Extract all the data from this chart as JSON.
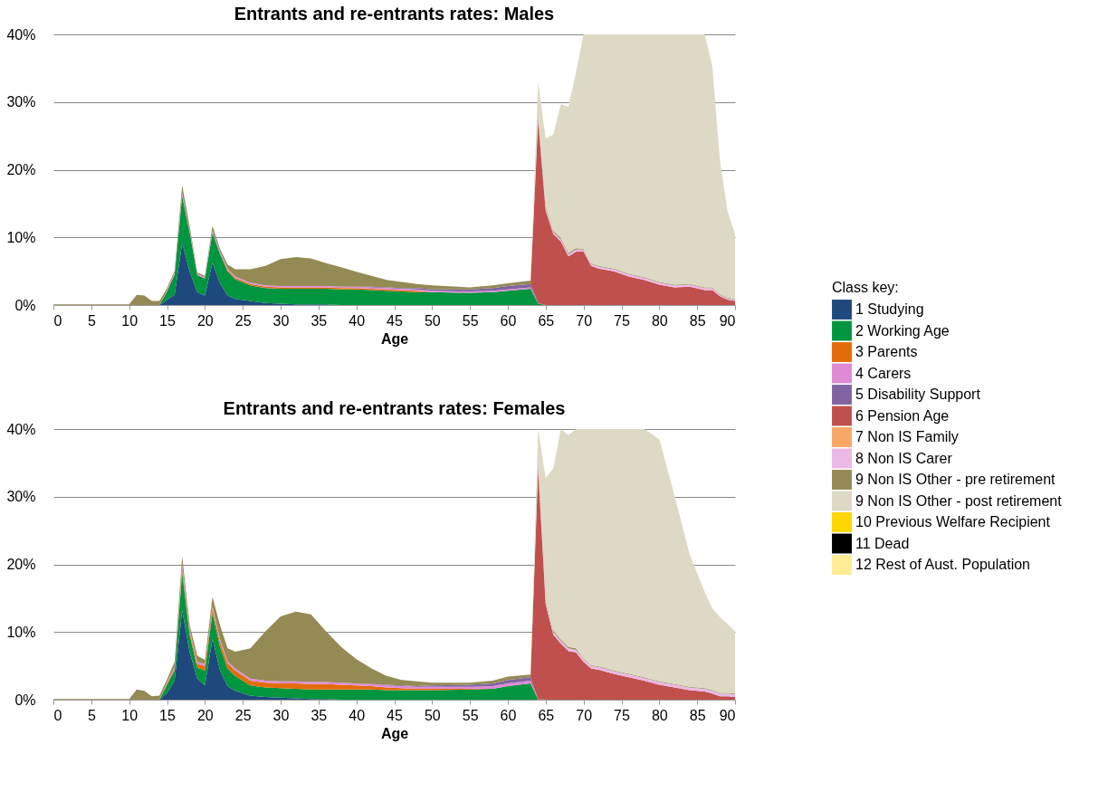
{
  "chart_data": [
    {
      "type": "area",
      "stacked": true,
      "title": "Entrants and re-entrants rates: Males",
      "xlabel": "Age",
      "legend_title": "Class key:",
      "legend": "right",
      "grid": "y",
      "xlim": [
        0,
        90
      ],
      "xticks": [
        0,
        5,
        10,
        15,
        20,
        25,
        30,
        35,
        40,
        45,
        50,
        55,
        60,
        65,
        70,
        75,
        80,
        85,
        90
      ],
      "ylim": [
        0,
        40
      ],
      "yticks": [
        {
          "value": 0,
          "label": "0%"
        },
        {
          "value": 10,
          "label": "10%"
        },
        {
          "value": 20,
          "label": "20%"
        },
        {
          "value": 30,
          "label": "30%"
        },
        {
          "value": 40,
          "label": "40%"
        }
      ],
      "x": [
        0,
        10,
        11,
        12,
        13,
        14,
        15,
        16,
        17,
        18,
        19,
        20,
        21,
        22,
        23,
        24,
        26,
        28,
        30,
        32,
        34,
        36,
        38,
        40,
        42,
        44,
        46,
        48,
        50,
        55,
        58,
        60,
        63,
        64,
        65,
        66,
        67,
        68,
        69,
        70,
        71,
        72,
        74,
        76,
        78,
        80,
        82,
        84,
        86,
        87,
        88,
        89,
        90
      ],
      "series": [
        {
          "name": "1 Studying",
          "color": "#1f497d",
          "values": [
            null,
            null,
            null,
            null,
            null,
            0,
            0.8,
            1.5,
            9.2,
            4.9,
            1.9,
            1.4,
            6.3,
            3.2,
            1.4,
            0.9,
            0.6,
            0.3,
            0.2,
            0.1,
            0.1,
            0.1,
            0,
            null,
            null,
            null,
            null,
            null,
            null,
            null,
            null,
            null,
            null,
            null,
            null,
            null,
            null,
            null,
            null,
            null,
            null,
            null,
            null,
            null,
            null,
            null,
            null,
            null,
            null,
            null,
            null,
            null,
            null
          ]
        },
        {
          "name": "2 Working Age",
          "color": "#00953f",
          "values": [
            null,
            null,
            null,
            null,
            null,
            0,
            1.2,
            3,
            6.9,
            5.8,
            2.5,
            2.5,
            4.4,
            4.4,
            3.6,
            2.9,
            2.3,
            2.2,
            2.2,
            2.3,
            2.3,
            2.3,
            2.3,
            2.3,
            2.2,
            2.1,
            2.0,
            1.9,
            1.9,
            1.8,
            1.9,
            2.1,
            2.4,
            0.2,
            0,
            null,
            null,
            null,
            null,
            null,
            null,
            null,
            null,
            null,
            null,
            null,
            null,
            null,
            null,
            null,
            null,
            null,
            null
          ]
        },
        {
          "name": "3 Parents",
          "color": "#e36c0a",
          "values": [
            null,
            null,
            null,
            null,
            null,
            null,
            null,
            null,
            null,
            null,
            null,
            null,
            null,
            0,
            0.2,
            0.2,
            0.2,
            0.2,
            0.2,
            0.2,
            0.2,
            0.2,
            0.2,
            0.2,
            0.2,
            0.2,
            0.2,
            0.2,
            0,
            null,
            null,
            null,
            null,
            null,
            null,
            null,
            null,
            null,
            null,
            null,
            null,
            null,
            null,
            null,
            null,
            null,
            null,
            null,
            null,
            null,
            null,
            null,
            null
          ]
        },
        {
          "name": "4 Carers",
          "color": "#e08ad6",
          "values": [
            null,
            null,
            null,
            null,
            null,
            0,
            0.2,
            0.3,
            0.4,
            0.3,
            0.2,
            0.2,
            0.3,
            0.3,
            0.2,
            0.2,
            0.2,
            0.2,
            0.2,
            0.2,
            0.2,
            0.2,
            0.2,
            0.2,
            0.2,
            0.2,
            0.2,
            0.2,
            0.2,
            0.2,
            0.2,
            0.2,
            0.2,
            0,
            null,
            null,
            null,
            null,
            null,
            null,
            null,
            null,
            null,
            null,
            null,
            null,
            null,
            null,
            null,
            null,
            null,
            null,
            null
          ]
        },
        {
          "name": "5 Disability Support",
          "color": "#8064a2",
          "values": [
            null,
            null,
            null,
            null,
            null,
            null,
            null,
            null,
            null,
            null,
            null,
            null,
            null,
            null,
            null,
            null,
            null,
            null,
            null,
            null,
            null,
            null,
            null,
            0,
            0.1,
            0.1,
            0.1,
            0.2,
            0.2,
            0.3,
            0.4,
            0.5,
            0.5,
            0.1,
            0,
            null,
            null,
            null,
            null,
            null,
            null,
            null,
            null,
            null,
            null,
            null,
            null,
            null,
            null,
            null,
            null,
            null,
            null
          ]
        },
        {
          "name": "6 Pension Age",
          "color": "#c0504d",
          "values": [
            null,
            null,
            null,
            null,
            null,
            null,
            null,
            null,
            null,
            null,
            null,
            null,
            null,
            null,
            null,
            null,
            null,
            null,
            null,
            null,
            null,
            null,
            null,
            null,
            null,
            null,
            null,
            null,
            null,
            null,
            null,
            null,
            0,
            27,
            13.9,
            10.5,
            9.4,
            7.2,
            7.9,
            7.9,
            5.8,
            5.4,
            5.0,
            4.2,
            3.7,
            3.0,
            2.6,
            2.7,
            2.2,
            2.2,
            1.3,
            0.8,
            0.6
          ]
        },
        {
          "name": "7 Non IS Family",
          "color": "#f8a767",
          "values": [
            null,
            null,
            null,
            null,
            null,
            null,
            null,
            null,
            null,
            null,
            null,
            null,
            null,
            null,
            null,
            null,
            null,
            null,
            null,
            null,
            null,
            null,
            null,
            null,
            null,
            null,
            null,
            null,
            null,
            null,
            null,
            null,
            null,
            null,
            null,
            null,
            null,
            null,
            null,
            null,
            null,
            null,
            null,
            null,
            null,
            null,
            null,
            null,
            null,
            null,
            null,
            null,
            null
          ]
        },
        {
          "name": "8 Non IS Carer",
          "color": "#ecb8e6",
          "values": [
            null,
            null,
            null,
            null,
            null,
            null,
            null,
            null,
            null,
            null,
            null,
            null,
            null,
            null,
            null,
            null,
            null,
            null,
            null,
            null,
            null,
            null,
            null,
            null,
            null,
            null,
            null,
            null,
            null,
            null,
            null,
            null,
            0,
            0.3,
            0.3,
            0.3,
            0.3,
            0.3,
            0.3,
            0.3,
            0.3,
            0.3,
            0.3,
            0.3,
            0.3,
            0.3,
            0.3,
            0.3,
            0.3,
            0.3,
            0.2,
            0.2,
            0.2
          ]
        },
        {
          "name": "9 Non IS Other - pre retirement",
          "color": "#948a54",
          "values": [
            0.1,
            0.1,
            1.5,
            1.4,
            0.6,
            0.6,
            0.3,
            0.3,
            1.2,
            0.6,
            0.2,
            0.2,
            0.7,
            0.4,
            0.6,
            1.1,
            2.0,
            2.9,
            4.0,
            4.3,
            4.1,
            3.4,
            2.9,
            2.2,
            1.6,
            1.1,
            0.9,
            0.6,
            0.6,
            0.3,
            0.4,
            0.4,
            0.5,
            0.5,
            0.3,
            0.2,
            0.2,
            0.2,
            0.2,
            0.1,
            0.1,
            0.1,
            0.1,
            0.1,
            0.1,
            0.1,
            0.1,
            0.1,
            0.1,
            0.1,
            0.1,
            0.1,
            0.1
          ]
        },
        {
          "name": "9 Non IS Other - post retirement",
          "color": "#ddd9c4",
          "values": [
            null,
            null,
            null,
            null,
            null,
            null,
            null,
            null,
            null,
            null,
            null,
            null,
            null,
            null,
            null,
            null,
            null,
            null,
            null,
            null,
            null,
            null,
            null,
            null,
            null,
            null,
            null,
            null,
            null,
            null,
            null,
            null,
            0,
            4.8,
            10.1,
            14.2,
            19.8,
            21.6,
            26.0,
            31.7,
            33.8,
            34.2,
            34.6,
            35.4,
            35.9,
            36.6,
            37.0,
            36.9,
            37.4,
            32.7,
            19.8,
            12.8,
            9.6
          ]
        },
        {
          "name": "10 Previous Welfare Recipient",
          "color": "#ffd700",
          "values": [
            null,
            null,
            null,
            null,
            null,
            null,
            null,
            null,
            null,
            null,
            null,
            null,
            null,
            null,
            null,
            null,
            null,
            null,
            null,
            null,
            null,
            null,
            null,
            null,
            null,
            null,
            null,
            null,
            null,
            null,
            null,
            null,
            null,
            null,
            null,
            null,
            null,
            null,
            null,
            null,
            null,
            null,
            null,
            null,
            null,
            null,
            null,
            null,
            null,
            null,
            null,
            null,
            null
          ]
        },
        {
          "name": "11 Dead",
          "color": "#000000",
          "values": [
            null,
            null,
            null,
            null,
            null,
            null,
            null,
            null,
            null,
            null,
            null,
            null,
            null,
            null,
            null,
            null,
            null,
            null,
            null,
            null,
            null,
            null,
            null,
            null,
            null,
            null,
            null,
            null,
            null,
            null,
            null,
            null,
            null,
            null,
            null,
            null,
            null,
            null,
            null,
            null,
            null,
            null,
            null,
            null,
            null,
            null,
            null,
            null,
            null,
            null,
            null,
            null,
            null
          ]
        },
        {
          "name": "12 Rest of Aust. Population",
          "color": "#ffec94",
          "values": [
            null,
            null,
            null,
            null,
            null,
            null,
            null,
            null,
            null,
            null,
            null,
            null,
            null,
            null,
            null,
            null,
            null,
            null,
            null,
            null,
            null,
            null,
            null,
            null,
            null,
            null,
            null,
            null,
            null,
            null,
            null,
            null,
            null,
            null,
            null,
            null,
            null,
            null,
            null,
            null,
            null,
            null,
            null,
            null,
            null,
            null,
            null,
            null,
            null,
            null,
            null,
            null,
            null
          ]
        }
      ]
    },
    {
      "type": "area",
      "stacked": true,
      "title": "Entrants and re-entrants rates: Females",
      "xlabel": "Age",
      "grid": "y",
      "xlim": [
        0,
        90
      ],
      "xticks": [
        0,
        5,
        10,
        15,
        20,
        25,
        30,
        35,
        40,
        45,
        50,
        55,
        60,
        65,
        70,
        75,
        80,
        85,
        90
      ],
      "ylim": [
        0,
        40
      ],
      "yticks": [
        {
          "value": 0,
          "label": "0%"
        },
        {
          "value": 10,
          "label": "10%"
        },
        {
          "value": 20,
          "label": "20%"
        },
        {
          "value": 30,
          "label": "30%"
        },
        {
          "value": 40,
          "label": "40%"
        }
      ],
      "x": [
        0,
        10,
        11,
        12,
        13,
        14,
        15,
        16,
        17,
        18,
        19,
        20,
        21,
        22,
        23,
        24,
        26,
        28,
        30,
        32,
        34,
        36,
        38,
        40,
        42,
        44,
        46,
        48,
        50,
        55,
        58,
        60,
        63,
        64,
        65,
        66,
        67,
        68,
        69,
        70,
        71,
        72,
        74,
        76,
        78,
        80,
        82,
        84,
        86,
        87,
        88,
        89,
        90
      ],
      "series": [
        {
          "name": "1 Studying",
          "color": "#1f497d",
          "values": [
            null,
            null,
            null,
            null,
            null,
            0,
            1.0,
            2.8,
            13.2,
            7.0,
            3.1,
            2.1,
            9.0,
            4.3,
            2.0,
            1.3,
            0.6,
            0.4,
            0.3,
            0.2,
            0.1,
            0.1,
            0,
            null,
            null,
            null,
            null,
            null,
            null,
            null,
            null,
            null,
            null,
            null,
            null,
            null,
            null,
            null,
            null,
            null,
            null,
            null,
            null,
            null,
            null,
            null,
            null,
            null,
            null,
            null,
            null,
            null,
            null
          ]
        },
        {
          "name": "2 Working Age",
          "color": "#00953f",
          "values": [
            null,
            null,
            null,
            null,
            null,
            0,
            1.2,
            1.5,
            5.6,
            2.5,
            1.6,
            2.2,
            3.8,
            3.5,
            2.6,
            2.2,
            1.5,
            1.4,
            1.4,
            1.4,
            1.4,
            1.4,
            1.5,
            1.5,
            1.5,
            1.4,
            1.4,
            1.4,
            1.4,
            1.5,
            1.6,
            2.0,
            2.4,
            0,
            null,
            null,
            null,
            null,
            null,
            null,
            null,
            null,
            null,
            null,
            null,
            null,
            null,
            null,
            null,
            null,
            null,
            null,
            null
          ]
        },
        {
          "name": "3 Parents",
          "color": "#e36c0a",
          "values": [
            null,
            null,
            null,
            null,
            null,
            0,
            0.2,
            0.2,
            0.4,
            0.4,
            0.6,
            0.7,
            0.6,
            0.7,
            0.8,
            0.8,
            0.7,
            0.7,
            0.7,
            0.8,
            0.8,
            0.8,
            0.7,
            0.6,
            0.5,
            0.4,
            0.3,
            0.2,
            0.2,
            0.1,
            0,
            null,
            null,
            null,
            null,
            null,
            null,
            null,
            null,
            null,
            null,
            null,
            null,
            null,
            null,
            null,
            null,
            null,
            null,
            null,
            null,
            null,
            null
          ]
        },
        {
          "name": "4 Carers",
          "color": "#e08ad6",
          "values": [
            null,
            null,
            null,
            null,
            null,
            0,
            0.2,
            0.3,
            0.6,
            0.4,
            0.3,
            0.3,
            0.4,
            0.4,
            0.3,
            0.3,
            0.3,
            0.3,
            0.3,
            0.3,
            0.3,
            0.3,
            0.3,
            0.3,
            0.3,
            0.3,
            0.3,
            0.3,
            0.3,
            0.3,
            0.4,
            0.4,
            0.4,
            0,
            null,
            null,
            null,
            null,
            null,
            null,
            null,
            null,
            null,
            null,
            null,
            null,
            null,
            null,
            null,
            null,
            null,
            null,
            null
          ]
        },
        {
          "name": "5 Disability Support",
          "color": "#8064a2",
          "values": [
            null,
            null,
            null,
            null,
            null,
            null,
            null,
            null,
            null,
            null,
            null,
            null,
            null,
            null,
            null,
            null,
            null,
            null,
            null,
            null,
            null,
            null,
            null,
            null,
            0,
            0.1,
            0.1,
            0.1,
            0.2,
            0.3,
            0.4,
            0.5,
            0.5,
            0.1,
            0,
            null,
            null,
            null,
            null,
            null,
            null,
            null,
            null,
            null,
            null,
            null,
            null,
            null,
            null,
            null,
            null,
            null,
            null
          ]
        },
        {
          "name": "6 Pension Age",
          "color": "#c0504d",
          "values": [
            null,
            null,
            null,
            null,
            null,
            null,
            null,
            null,
            null,
            null,
            null,
            null,
            null,
            null,
            null,
            null,
            null,
            null,
            null,
            null,
            null,
            null,
            null,
            null,
            null,
            null,
            null,
            null,
            null,
            null,
            null,
            null,
            0,
            34,
            14.1,
            9.6,
            8.3,
            7.2,
            7.0,
            5.6,
            4.6,
            4.4,
            3.8,
            3.3,
            2.8,
            2.2,
            1.8,
            1.4,
            1.2,
            0.9,
            0.5,
            0.5,
            0.4
          ]
        },
        {
          "name": "8 Non IS Carer",
          "color": "#ecb8e6",
          "values": [
            null,
            null,
            null,
            null,
            null,
            null,
            null,
            null,
            null,
            null,
            null,
            null,
            null,
            null,
            null,
            null,
            null,
            null,
            null,
            null,
            null,
            null,
            null,
            null,
            null,
            null,
            null,
            null,
            null,
            null,
            null,
            null,
            0,
            0.4,
            0.4,
            0.4,
            0.4,
            0.4,
            0.4,
            0.4,
            0.4,
            0.4,
            0.4,
            0.4,
            0.4,
            0.4,
            0.4,
            0.4,
            0.4,
            0.4,
            0.4,
            0.4,
            0.4
          ]
        },
        {
          "name": "9 Non IS Other - pre retirement",
          "color": "#948a54",
          "values": [
            0.1,
            0.1,
            1.5,
            1.3,
            0.5,
            0.6,
            0.4,
            0.8,
            1.4,
            0.7,
            0.9,
            0.6,
            1.4,
            2.1,
            1.9,
            2.5,
            4.5,
            7.3,
            9.6,
            10.3,
            10.0,
            7.5,
            5.3,
            3.6,
            2.3,
            1.3,
            0.8,
            0.7,
            0.4,
            0.3,
            0.4,
            0.5,
            0.4,
            0.5,
            0.2,
            0.2,
            0.2,
            0.2,
            0.2,
            0.1,
            0.1,
            0.1,
            0.1,
            0.1,
            0.1,
            0.1,
            0.1,
            0.1,
            0.1,
            0.1,
            0.1,
            0.1,
            0.1
          ]
        },
        {
          "name": "9 Non IS Other - post retirement",
          "color": "#ddd9c4",
          "values": [
            null,
            null,
            null,
            null,
            null,
            null,
            null,
            null,
            null,
            null,
            null,
            null,
            null,
            null,
            null,
            null,
            null,
            null,
            null,
            null,
            null,
            null,
            null,
            null,
            null,
            null,
            null,
            null,
            null,
            null,
            null,
            null,
            0,
            5.0,
            18.0,
            24.0,
            31.1,
            31.3,
            32.4,
            33.9,
            34.9,
            35.1,
            35.7,
            36.2,
            36.7,
            35.8,
            27.9,
            19.6,
            14.2,
            12.1,
            11.2,
            10.2,
            9.2
          ]
        }
      ]
    }
  ]
}
